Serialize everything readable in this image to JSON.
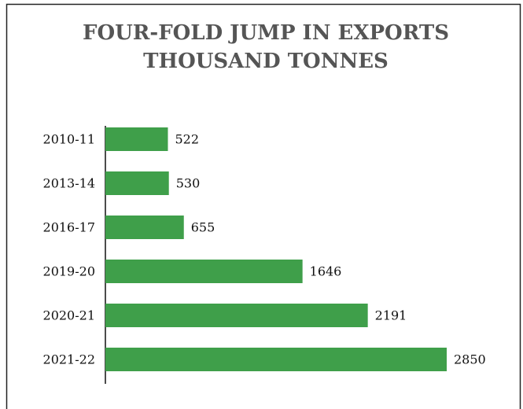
{
  "chart_data": {
    "type": "bar",
    "orientation": "horizontal",
    "title": "FOUR-FOLD JUMP IN EXPORTS",
    "subtitle": "THOUSAND TONNES",
    "categories": [
      "2010-11",
      "2013-14",
      "2016-17",
      "2019-20",
      "2020-21",
      "2021-22"
    ],
    "values": [
      522,
      530,
      655,
      1646,
      2191,
      2850
    ],
    "color": "#3f9f4a"
  }
}
